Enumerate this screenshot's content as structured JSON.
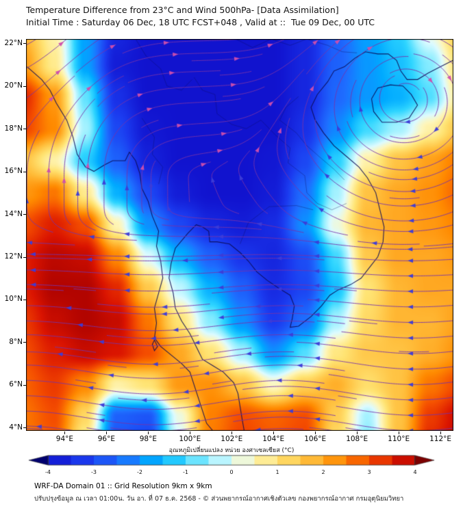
{
  "title_line1": "Temperature Difference from 23°C and Wind 500hPa- [Data Assimilation]",
  "title_line2": "Initial Time : Saturday 06 Dec, 18 UTC FCST+048 , Valid at ::  Tue 09 Dec, 00 UTC",
  "footer": {
    "line1": "WRF-DA Domain 01 :: Grid Resolution 9km x 9km",
    "line2": "ปรับปรุงข้อมูล ณ เวลา 01:00น. วัน อา. ที่ 07 ธ.ค. 2568 - © ส่วนพยากรณ์อากาศเชิงตัวเลข กองพยากรณ์อากาศ กรมอุตุนิยมวิทยา"
  },
  "colorbar": {
    "label": "อุณหภูมิเปลี่ยนแปลง หน่วย องศาเซลเซียส (°C)",
    "ticks": [
      "-4",
      "-3",
      "-2",
      "-1",
      "0",
      "1",
      "2",
      "3",
      "4"
    ],
    "tick_values": [
      -4,
      -3,
      -2,
      -1,
      0,
      1,
      2,
      3,
      4
    ],
    "range": [
      -4.5,
      4.5
    ],
    "stops": [
      [
        -4.5,
        "#00006e"
      ],
      [
        -4.0,
        "#1113cf"
      ],
      [
        -3.2,
        "#1b3aef"
      ],
      [
        -2.4,
        "#1e6eff"
      ],
      [
        -1.7,
        "#00aaff"
      ],
      [
        -1.1,
        "#2fd5ff"
      ],
      [
        -0.55,
        "#8feeff"
      ],
      [
        0.0,
        "#ddfbff"
      ],
      [
        0.45,
        "#fef6bb"
      ],
      [
        1.0,
        "#ffe474"
      ],
      [
        1.7,
        "#ffbd3a"
      ],
      [
        2.4,
        "#ff8a00"
      ],
      [
        3.0,
        "#f44d00"
      ],
      [
        3.6,
        "#da1400"
      ],
      [
        4.1,
        "#a80000"
      ],
      [
        4.5,
        "#7c0000"
      ]
    ]
  },
  "chart_data": {
    "type": "heatmap",
    "title": "Temperature Difference from 23°C and Wind 500hPa- [Data Assimilation]",
    "xlabel": "",
    "ylabel": "",
    "value_units": "°C",
    "value_range": [
      -4,
      4
    ],
    "lon_range": [
      92.15,
      112.62
    ],
    "lat_range": [
      3.85,
      22.2
    ],
    "x_tick_values": [
      94,
      96,
      98,
      100,
      102,
      104,
      106,
      108,
      110,
      112
    ],
    "x_tick_labels": [
      "94°E",
      "96°E",
      "98°E",
      "100°E",
      "102°E",
      "104°E",
      "106°E",
      "108°E",
      "110°E",
      "112°E"
    ],
    "y_tick_values": [
      22,
      20,
      18,
      16,
      14,
      12,
      10,
      8,
      6,
      4
    ],
    "y_tick_labels": [
      "22°N",
      "20°N",
      "18°N",
      "16°N",
      "14°N",
      "12°N",
      "10°N",
      "8°N",
      "6°N",
      "4°N"
    ],
    "grid_lons": [
      92,
      93.5,
      95,
      96.5,
      98,
      99.5,
      101,
      102.5,
      104,
      105.5,
      107,
      108.5,
      110,
      111.5,
      113
    ],
    "grid_lats": [
      22.5,
      21,
      19.5,
      18,
      16.5,
      15,
      13.5,
      12,
      10.5,
      9,
      7.5,
      6,
      4.5,
      3
    ],
    "values": [
      [
        1.8,
        0.6,
        -1.8,
        -3.6,
        -4.0,
        -4.0,
        -4.0,
        -4.0,
        -4.0,
        -3.6,
        -2.6,
        -1.8,
        -1.2,
        0.2,
        1.6
      ],
      [
        2.2,
        0.8,
        -1.8,
        -3.8,
        -4.0,
        -4.0,
        -4.0,
        -4.0,
        -4.0,
        -3.6,
        -2.6,
        -1.9,
        -1.4,
        -0.6,
        1.2
      ],
      [
        3.4,
        2.2,
        -0.8,
        -3.4,
        -4.0,
        -4.0,
        -4.0,
        -4.0,
        -4.0,
        -3.6,
        -2.5,
        -1.9,
        -1.6,
        -0.9,
        0.9
      ],
      [
        3.1,
        2.4,
        -0.4,
        -3.0,
        -3.9,
        -4.0,
        -4.0,
        -4.0,
        -4.0,
        -3.4,
        -2.1,
        -1.0,
        -0.4,
        0.6,
        1.6
      ],
      [
        1.6,
        0.6,
        -1.2,
        -2.6,
        -3.7,
        -4.0,
        -4.0,
        -4.0,
        -3.9,
        -3.0,
        -1.2,
        0.6,
        1.6,
        2.1,
        2.6
      ],
      [
        2.2,
        2.6,
        0.8,
        -1.6,
        -3.0,
        -3.8,
        -4.0,
        -4.0,
        -3.8,
        -2.4,
        -0.4,
        1.6,
        2.0,
        2.3,
        2.8
      ],
      [
        3.0,
        3.5,
        3.0,
        0.5,
        -2.0,
        -3.0,
        -3.6,
        -3.8,
        -3.5,
        -2.0,
        0.2,
        1.8,
        2.0,
        2.2,
        2.5
      ],
      [
        3.5,
        3.9,
        3.8,
        2.4,
        0.0,
        -1.6,
        -2.6,
        -3.3,
        -3.6,
        -2.9,
        -1.0,
        1.5,
        2.0,
        2.0,
        2.2
      ],
      [
        3.5,
        4.0,
        4.0,
        3.4,
        1.5,
        -0.2,
        -1.6,
        -2.6,
        -3.5,
        -3.0,
        -1.4,
        1.0,
        1.8,
        2.0,
        2.0
      ],
      [
        3.2,
        3.8,
        4.0,
        3.8,
        2.6,
        1.0,
        -0.6,
        -2.0,
        -3.2,
        -2.4,
        -0.4,
        1.2,
        1.8,
        1.8,
        2.1
      ],
      [
        3.0,
        3.5,
        3.8,
        3.6,
        3.0,
        2.0,
        1.0,
        -0.4,
        -2.0,
        -0.9,
        0.9,
        1.5,
        1.6,
        1.9,
        2.3
      ],
      [
        2.8,
        3.2,
        2.4,
        0.6,
        1.0,
        2.2,
        2.3,
        1.6,
        0.4,
        1.4,
        1.9,
        1.1,
        1.6,
        2.6,
        3.1
      ],
      [
        2.6,
        3.0,
        1.2,
        -2.6,
        -2.8,
        0.2,
        2.5,
        3.0,
        2.8,
        3.0,
        1.4,
        -0.4,
        1.6,
        3.2,
        3.8
      ],
      [
        2.5,
        2.8,
        0.4,
        -3.0,
        -3.3,
        -0.3,
        2.6,
        3.2,
        3.0,
        3.2,
        1.0,
        -0.8,
        1.7,
        3.5,
        4.0
      ]
    ],
    "wind_overlay": {
      "type": "streamlines",
      "level": "500hPa",
      "line_color": "#7733aa",
      "arrow_west_color": "#3c3cd8",
      "arrow_east_color": "#cf4fae",
      "base_easterly": 15,
      "easterly_lat": 14.5,
      "easterly_width": 7,
      "base_westerly": 8,
      "westerly_lat": 15.5,
      "westerly_width": 6,
      "wave_amp": 2.4,
      "wave_k": 2.0,
      "wave_lat": 13,
      "wave_width": 7,
      "ridge_amp": 6.5,
      "ridge_lon": 94.2,
      "ridge_sigma2": 10,
      "ridge_lat": 12,
      "ridge_width": 7,
      "vortex": {
        "lon": 110.3,
        "lat": 19.9,
        "strength": 12,
        "decay": 14
      }
    },
    "map_overlays": {
      "coastlines": [
        [
          [
            92.2,
            20.9
          ],
          [
            92.9,
            20.3
          ],
          [
            93.3,
            19.8
          ],
          [
            93.6,
            19.2
          ],
          [
            94.1,
            18.4
          ],
          [
            94.4,
            17.6
          ],
          [
            94.6,
            16.8
          ],
          [
            95.0,
            16.2
          ],
          [
            95.4,
            16.0
          ],
          [
            95.9,
            16.3
          ],
          [
            96.3,
            16.5
          ],
          [
            96.9,
            16.5
          ],
          [
            97.1,
            16.9
          ],
          [
            97.4,
            16.5
          ],
          [
            97.6,
            15.9
          ],
          [
            97.7,
            15.2
          ],
          [
            98.0,
            14.6
          ],
          [
            98.2,
            13.9
          ],
          [
            98.5,
            13.2
          ],
          [
            98.4,
            12.5
          ],
          [
            98.6,
            11.8
          ],
          [
            98.7,
            11.0
          ],
          [
            98.5,
            10.3
          ],
          [
            98.3,
            9.6
          ],
          [
            98.4,
            8.9
          ],
          [
            98.3,
            8.2
          ],
          [
            98.6,
            7.8
          ],
          [
            99.1,
            7.4
          ],
          [
            99.6,
            7.0
          ],
          [
            100.0,
            6.6
          ],
          [
            100.2,
            6.0
          ],
          [
            100.4,
            5.4
          ],
          [
            100.6,
            4.8
          ],
          [
            100.8,
            4.2
          ],
          [
            101.1,
            3.85
          ]
        ],
        [
          [
            102.6,
            3.85
          ],
          [
            102.5,
            4.4
          ],
          [
            102.4,
            5.0
          ],
          [
            102.3,
            5.6
          ],
          [
            102.1,
            6.1
          ],
          [
            101.6,
            6.6
          ],
          [
            101.1,
            6.9
          ],
          [
            100.6,
            7.2
          ],
          [
            100.3,
            7.8
          ],
          [
            100.0,
            8.4
          ],
          [
            99.6,
            9.0
          ],
          [
            99.3,
            9.6
          ],
          [
            99.2,
            10.3
          ],
          [
            99.0,
            11.0
          ],
          [
            99.1,
            11.7
          ],
          [
            99.3,
            12.4
          ],
          [
            99.9,
            13.1
          ],
          [
            100.3,
            13.5
          ],
          [
            100.6,
            13.4
          ],
          [
            100.9,
            13.2
          ],
          [
            100.95,
            12.7
          ],
          [
            101.3,
            12.7
          ],
          [
            101.9,
            12.6
          ],
          [
            102.4,
            12.2
          ],
          [
            102.8,
            11.8
          ],
          [
            103.2,
            11.3
          ],
          [
            103.7,
            10.9
          ],
          [
            104.3,
            10.5
          ],
          [
            104.8,
            10.2
          ],
          [
            105.0,
            9.7
          ],
          [
            104.9,
            9.1
          ],
          [
            104.8,
            8.7
          ],
          [
            105.2,
            8.75
          ],
          [
            105.8,
            9.2
          ],
          [
            106.3,
            9.7
          ],
          [
            106.7,
            10.2
          ],
          [
            107.1,
            10.45
          ],
          [
            107.7,
            10.7
          ],
          [
            108.2,
            11.0
          ],
          [
            108.6,
            11.5
          ],
          [
            109.0,
            12.0
          ],
          [
            109.25,
            12.7
          ],
          [
            109.3,
            13.4
          ],
          [
            109.1,
            14.2
          ],
          [
            108.9,
            15.0
          ],
          [
            108.5,
            15.7
          ],
          [
            108.1,
            16.2
          ],
          [
            107.5,
            16.7
          ],
          [
            106.9,
            17.2
          ],
          [
            106.4,
            17.8
          ],
          [
            106.0,
            18.4
          ],
          [
            105.8,
            19.0
          ],
          [
            106.1,
            19.6
          ],
          [
            106.6,
            20.2
          ],
          [
            106.9,
            20.7
          ],
          [
            107.4,
            20.9
          ],
          [
            107.9,
            21.3
          ],
          [
            108.4,
            21.6
          ],
          [
            109.0,
            21.5
          ],
          [
            109.5,
            21.5
          ],
          [
            109.9,
            21.2
          ],
          [
            110.1,
            20.7
          ],
          [
            110.4,
            20.3
          ],
          [
            110.9,
            20.3
          ],
          [
            111.4,
            20.6
          ],
          [
            112.0,
            20.9
          ],
          [
            112.6,
            21.2
          ]
        ],
        [
          [
            108.7,
            19.4
          ],
          [
            109.0,
            19.9
          ],
          [
            109.6,
            20.05
          ],
          [
            110.2,
            20.0
          ],
          [
            110.6,
            19.6
          ],
          [
            110.9,
            19.1
          ],
          [
            110.5,
            18.5
          ],
          [
            109.9,
            18.3
          ],
          [
            109.2,
            18.3
          ],
          [
            108.8,
            18.8
          ],
          [
            108.7,
            19.4
          ]
        ],
        [
          [
            98.3,
            8.1
          ],
          [
            98.45,
            7.8
          ],
          [
            98.3,
            7.6
          ],
          [
            98.2,
            7.9
          ],
          [
            98.3,
            8.1
          ]
        ]
      ],
      "borders": [
        [
          [
            97.7,
            18.5
          ],
          [
            98.3,
            17.6
          ],
          [
            98.2,
            16.8
          ],
          [
            98.7,
            16.2
          ],
          [
            98.5,
            15.4
          ]
        ],
        [
          [
            100.2,
            20.4
          ],
          [
            100.6,
            19.8
          ],
          [
            101.2,
            19.6
          ],
          [
            101.3,
            18.7
          ],
          [
            102.0,
            18.2
          ],
          [
            102.7,
            18.0
          ],
          [
            103.4,
            18.4
          ],
          [
            104.1,
            17.7
          ],
          [
            104.8,
            17.1
          ],
          [
            104.7,
            16.4
          ],
          [
            105.5,
            15.8
          ],
          [
            105.6,
            15.0
          ],
          [
            106.1,
            14.5
          ],
          [
            106.8,
            14.2
          ],
          [
            107.5,
            14.5
          ]
        ],
        [
          [
            102.2,
            22.2
          ],
          [
            103.0,
            21.8
          ],
          [
            103.9,
            22.2
          ],
          [
            104.8,
            21.9
          ],
          [
            105.6,
            22.2
          ],
          [
            106.6,
            21.9
          ],
          [
            107.3,
            21.6
          ],
          [
            108.0,
            21.55
          ]
        ],
        [
          [
            102.4,
            12.6
          ],
          [
            102.8,
            13.6
          ],
          [
            103.8,
            14.35
          ],
          [
            105.1,
            14.4
          ],
          [
            105.9,
            14.2
          ]
        ],
        [
          [
            105.2,
            19.5
          ],
          [
            104.6,
            19.0
          ],
          [
            104.3,
            18.4
          ],
          [
            105.1,
            17.8
          ],
          [
            105.6,
            17.2
          ],
          [
            106.3,
            16.6
          ],
          [
            106.9,
            16.1
          ],
          [
            107.4,
            15.6
          ]
        ],
        [
          [
            97.4,
            22.2
          ],
          [
            97.9,
            21.4
          ],
          [
            98.6,
            20.8
          ],
          [
            98.9,
            20.0
          ],
          [
            99.6,
            19.8
          ],
          [
            100.1,
            20.3
          ]
        ]
      ]
    }
  }
}
